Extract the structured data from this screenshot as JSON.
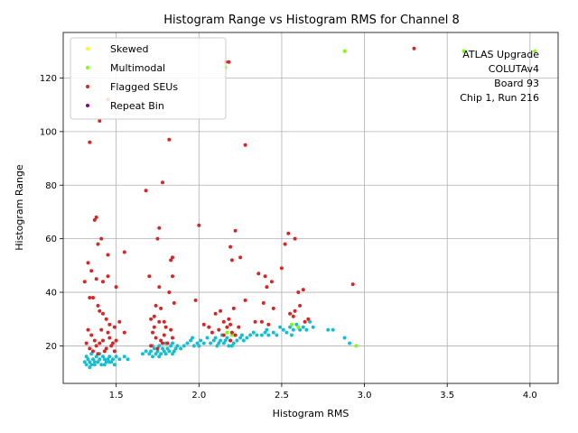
{
  "chart_data": {
    "type": "scatter",
    "title": "Histogram Range vs Histogram RMS for Channel 8",
    "xlabel": "Histogram RMS",
    "ylabel": "Histogram Range",
    "xlim": [
      1.18,
      4.17
    ],
    "ylim": [
      6,
      137
    ],
    "xticks": [
      "1.5",
      "2.0",
      "2.5",
      "3.0",
      "3.5",
      "4.0"
    ],
    "xtick_values": [
      1.5,
      2.0,
      2.5,
      3.0,
      3.5,
      4.0
    ],
    "yticks": [
      "20",
      "40",
      "60",
      "80",
      "100",
      "120"
    ],
    "ytick_values": [
      20,
      40,
      60,
      80,
      100,
      120
    ],
    "grid": true,
    "legend_position": "top-left",
    "annotation": [
      "ATLAS Upgrade",
      "COLUTAv4",
      "Board 93",
      "Chip 1, Run 216"
    ],
    "series": [
      {
        "name": "",
        "color": "#17becf",
        "in_legend": false,
        "points": [
          [
            1.31,
            14
          ],
          [
            1.32,
            13
          ],
          [
            1.33,
            15
          ],
          [
            1.34,
            14
          ],
          [
            1.35,
            13
          ],
          [
            1.36,
            15
          ],
          [
            1.37,
            14
          ],
          [
            1.38,
            16
          ],
          [
            1.39,
            14
          ],
          [
            1.4,
            15
          ],
          [
            1.41,
            13
          ],
          [
            1.42,
            16
          ],
          [
            1.43,
            15
          ],
          [
            1.44,
            14
          ],
          [
            1.45,
            15
          ],
          [
            1.46,
            16
          ],
          [
            1.47,
            14
          ],
          [
            1.48,
            15
          ],
          [
            1.49,
            13
          ],
          [
            1.5,
            16
          ],
          [
            1.32,
            16
          ],
          [
            1.35,
            17
          ],
          [
            1.37,
            13
          ],
          [
            1.4,
            17
          ],
          [
            1.43,
            13
          ],
          [
            1.46,
            14
          ],
          [
            1.52,
            15
          ],
          [
            1.55,
            16
          ],
          [
            1.57,
            15
          ],
          [
            1.34,
            12
          ],
          [
            1.7,
            17
          ],
          [
            1.71,
            18
          ],
          [
            1.72,
            16
          ],
          [
            1.73,
            19
          ],
          [
            1.74,
            17
          ],
          [
            1.75,
            18
          ],
          [
            1.76,
            20
          ],
          [
            1.77,
            17
          ],
          [
            1.78,
            19
          ],
          [
            1.79,
            18
          ],
          [
            1.8,
            17
          ],
          [
            1.81,
            19
          ],
          [
            1.82,
            18
          ],
          [
            1.83,
            20
          ],
          [
            1.84,
            17
          ],
          [
            1.85,
            18
          ],
          [
            1.86,
            19
          ],
          [
            1.87,
            20
          ],
          [
            1.72,
            20
          ],
          [
            1.76,
            16
          ],
          [
            1.66,
            17
          ],
          [
            1.68,
            18
          ],
          [
            1.8,
            21
          ],
          [
            1.84,
            21
          ],
          [
            1.89,
            19
          ],
          [
            1.91,
            20
          ],
          [
            1.93,
            21
          ],
          [
            1.95,
            22
          ],
          [
            1.97,
            20
          ],
          [
            1.99,
            21
          ],
          [
            2.01,
            22
          ],
          [
            2.03,
            21
          ],
          [
            2.05,
            23
          ],
          [
            2.07,
            21
          ],
          [
            2.09,
            22
          ],
          [
            2.11,
            20
          ],
          [
            2.13,
            22
          ],
          [
            2.15,
            21
          ],
          [
            2.17,
            23
          ],
          [
            2.19,
            22
          ],
          [
            2.21,
            21
          ],
          [
            2.23,
            22
          ],
          [
            2.25,
            23
          ],
          [
            2.27,
            22
          ],
          [
            2.29,
            23
          ],
          [
            2.31,
            24
          ],
          [
            2.1,
            23
          ],
          [
            2.14,
            24
          ],
          [
            2.18,
            20
          ],
          [
            2.22,
            24
          ],
          [
            2.26,
            24
          ],
          [
            2.16,
            22
          ],
          [
            2.2,
            20
          ],
          [
            2.12,
            21
          ],
          [
            1.96,
            23
          ],
          [
            2.0,
            20
          ],
          [
            2.33,
            25
          ],
          [
            2.35,
            24
          ],
          [
            2.38,
            24
          ],
          [
            2.4,
            25
          ],
          [
            2.42,
            24
          ],
          [
            2.45,
            25
          ],
          [
            2.47,
            24
          ],
          [
            2.49,
            27
          ],
          [
            2.51,
            26
          ],
          [
            2.53,
            25
          ],
          [
            2.55,
            27
          ],
          [
            2.57,
            26
          ],
          [
            2.59,
            28
          ],
          [
            2.61,
            26
          ],
          [
            2.63,
            27
          ],
          [
            2.65,
            26
          ],
          [
            2.67,
            29
          ],
          [
            2.69,
            27
          ],
          [
            2.41,
            26
          ],
          [
            2.56,
            24
          ],
          [
            2.78,
            26
          ],
          [
            2.81,
            26
          ],
          [
            2.88,
            23
          ],
          [
            2.91,
            21
          ]
        ]
      },
      {
        "name": "Skewed",
        "color": "#ffff00",
        "in_legend": true,
        "points": []
      },
      {
        "name": "Multimodal",
        "color": "#7fff00",
        "in_legend": true,
        "points": [
          [
            2.16,
            124
          ],
          [
            2.88,
            130
          ],
          [
            3.6,
            130
          ],
          [
            4.03,
            130
          ],
          [
            2.17,
            25
          ],
          [
            2.2,
            24
          ],
          [
            2.56,
            28
          ],
          [
            2.6,
            27
          ],
          [
            2.95,
            20
          ]
        ]
      },
      {
        "name": "Flagged SEUs",
        "color": "#d62728",
        "in_legend": true,
        "points": [
          [
            1.34,
            96
          ],
          [
            1.4,
            104
          ],
          [
            1.45,
            112
          ],
          [
            1.38,
            68
          ],
          [
            1.37,
            67
          ],
          [
            1.41,
            60
          ],
          [
            1.39,
            58
          ],
          [
            1.45,
            54
          ],
          [
            1.55,
            55
          ],
          [
            1.33,
            51
          ],
          [
            1.35,
            48
          ],
          [
            1.38,
            45
          ],
          [
            1.42,
            44
          ],
          [
            1.45,
            46
          ],
          [
            1.5,
            42
          ],
          [
            1.31,
            44
          ],
          [
            1.34,
            38
          ],
          [
            1.36,
            38
          ],
          [
            1.39,
            35
          ],
          [
            1.4,
            33
          ],
          [
            1.42,
            32
          ],
          [
            1.44,
            30
          ],
          [
            1.46,
            28
          ],
          [
            1.49,
            27
          ],
          [
            1.52,
            29
          ],
          [
            1.55,
            25
          ],
          [
            1.33,
            26
          ],
          [
            1.35,
            24
          ],
          [
            1.37,
            22
          ],
          [
            1.38,
            20
          ],
          [
            1.4,
            21
          ],
          [
            1.42,
            22
          ],
          [
            1.44,
            19
          ],
          [
            1.46,
            23
          ],
          [
            1.48,
            21
          ],
          [
            1.5,
            22
          ],
          [
            1.34,
            19
          ],
          [
            1.36,
            18
          ],
          [
            1.39,
            17
          ],
          [
            1.43,
            18
          ],
          [
            1.47,
            20
          ],
          [
            1.49,
            18
          ],
          [
            1.32,
            21
          ],
          [
            1.41,
            26
          ],
          [
            1.45,
            25
          ],
          [
            1.68,
            78
          ],
          [
            1.78,
            81
          ],
          [
            1.82,
            97
          ],
          [
            1.76,
            64
          ],
          [
            1.75,
            60
          ],
          [
            1.84,
            53
          ],
          [
            1.83,
            52
          ],
          [
            1.7,
            46
          ],
          [
            1.84,
            46
          ],
          [
            1.76,
            42
          ],
          [
            1.82,
            40
          ],
          [
            1.74,
            35
          ],
          [
            1.77,
            34
          ],
          [
            1.85,
            36
          ],
          [
            1.73,
            31
          ],
          [
            1.71,
            30
          ],
          [
            1.76,
            29
          ],
          [
            1.8,
            27
          ],
          [
            1.83,
            26
          ],
          [
            1.72,
            25
          ],
          [
            1.74,
            23
          ],
          [
            1.77,
            22
          ],
          [
            1.79,
            24
          ],
          [
            1.81,
            21
          ],
          [
            1.71,
            20
          ],
          [
            1.75,
            19
          ],
          [
            1.78,
            21
          ],
          [
            1.84,
            23
          ],
          [
            1.73,
            27
          ],
          [
            1.79,
            29
          ],
          [
            2.0,
            65
          ],
          [
            2.18,
            126
          ],
          [
            2.16,
            126
          ],
          [
            2.22,
            63
          ],
          [
            2.19,
            57
          ],
          [
            2.2,
            52
          ],
          [
            2.25,
            53
          ],
          [
            2.28,
            95
          ],
          [
            2.13,
            33
          ],
          [
            2.1,
            32
          ],
          [
            1.98,
            37
          ],
          [
            2.03,
            28
          ],
          [
            2.06,
            27
          ],
          [
            2.15,
            29
          ],
          [
            2.17,
            27
          ],
          [
            2.19,
            28
          ],
          [
            2.2,
            25
          ],
          [
            2.22,
            24
          ],
          [
            2.12,
            26
          ],
          [
            2.18,
            30
          ],
          [
            2.21,
            34
          ],
          [
            2.24,
            27
          ],
          [
            2.08,
            25
          ],
          [
            2.15,
            24
          ],
          [
            2.19,
            22
          ],
          [
            2.28,
            37
          ],
          [
            2.34,
            29
          ],
          [
            2.36,
            47
          ],
          [
            2.38,
            29
          ],
          [
            2.39,
            36
          ],
          [
            2.4,
            46
          ],
          [
            2.41,
            42
          ],
          [
            2.44,
            44
          ],
          [
            2.45,
            34
          ],
          [
            2.42,
            28
          ],
          [
            2.5,
            49
          ],
          [
            2.52,
            58
          ],
          [
            2.54,
            62
          ],
          [
            2.55,
            32
          ],
          [
            2.57,
            31
          ],
          [
            2.58,
            60
          ],
          [
            2.6,
            40
          ],
          [
            2.61,
            35
          ],
          [
            2.63,
            41
          ],
          [
            2.64,
            29
          ],
          [
            2.66,
            30
          ],
          [
            2.58,
            33
          ],
          [
            2.93,
            43
          ],
          [
            3.3,
            131
          ]
        ]
      },
      {
        "name": "Repeat Bin",
        "color": "#8b008b",
        "in_legend": true,
        "points": []
      }
    ]
  }
}
